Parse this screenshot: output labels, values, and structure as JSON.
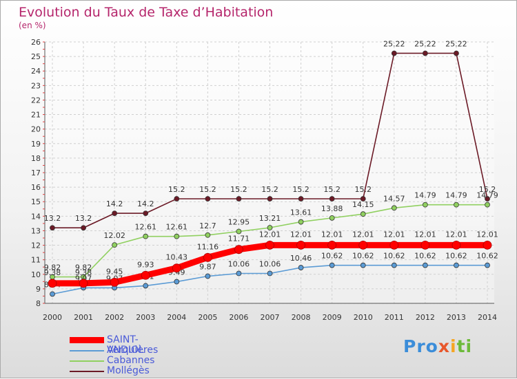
{
  "title": "Evolution du Taux de Taxe d’Habitation",
  "unit_label": "(en %)",
  "logo": {
    "letters": [
      "P",
      "r",
      "o",
      "x",
      "i",
      "t",
      "i"
    ],
    "colors": [
      "#3b8dd9",
      "#3b8dd9",
      "#3b8dd9",
      "#e8572b",
      "#f5a623",
      "#6cba3a",
      "#6cba3a"
    ]
  },
  "chart_data": {
    "type": "line",
    "x": [
      2000,
      2001,
      2002,
      2003,
      2004,
      2005,
      2006,
      2007,
      2008,
      2009,
      2010,
      2011,
      2012,
      2013,
      2014
    ],
    "ylim": [
      8,
      26
    ],
    "yticks": [
      8,
      9,
      10,
      11,
      12,
      13,
      14,
      15,
      16,
      17,
      18,
      19,
      20,
      21,
      22,
      23,
      24,
      25,
      26
    ],
    "grid": true,
    "legend_position": "bottom-left",
    "series": [
      {
        "name": "Mollégès",
        "color": "#6b1a26",
        "values": [
          13.2,
          13.2,
          14.2,
          14.2,
          15.2,
          15.2,
          15.2,
          15.2,
          15.2,
          15.2,
          15.2,
          25.22,
          25.22,
          25.22,
          15.2
        ],
        "labels": [
          "13.2",
          "13.2",
          "14.2",
          "14.2",
          "15.2",
          "15.2",
          "15.2",
          "15.2",
          "15.2",
          "15.2",
          "15.2",
          "25.22",
          "25.22",
          "25.22",
          "15.2"
        ]
      },
      {
        "name": "Cabannes",
        "color": "#90d060",
        "values": [
          9.82,
          9.82,
          12.02,
          12.61,
          12.61,
          12.7,
          12.95,
          13.21,
          13.61,
          13.88,
          14.15,
          14.57,
          14.79,
          14.79,
          14.79
        ],
        "labels": [
          "9.82",
          "9.82",
          "12.02",
          "12.61",
          "12.61",
          "12.7",
          "12.95",
          "13.21",
          "13.61",
          "13.88",
          "14.15",
          "14.57",
          "14.79",
          "14.79",
          "14.79"
        ]
      },
      {
        "name": "Verquières",
        "color": "#5b9bd5",
        "values": [
          8.64,
          9.07,
          9.07,
          9.21,
          9.49,
          9.87,
          10.06,
          10.06,
          10.46,
          10.62,
          10.62,
          10.62,
          10.62,
          10.62,
          10.62
        ],
        "labels": [
          "8.64",
          "9.07",
          "9.07",
          "9.21",
          "9.49",
          "9.87",
          "10.06",
          "10.06",
          "10.46",
          "10.62",
          "10.62",
          "10.62",
          "10.62",
          "10.62",
          "10.62"
        ]
      },
      {
        "name": "SAINT-ANDIOL",
        "color": "#ff0000",
        "values": [
          9.38,
          9.38,
          9.45,
          9.93,
          10.43,
          11.16,
          11.71,
          12.01,
          12.01,
          12.01,
          12.01,
          12.01,
          12.01,
          12.01,
          12.01
        ],
        "labels": [
          "9.38",
          "9.38",
          "9.45",
          "9.93",
          "10.43",
          "11.16",
          "11.71",
          "12.01",
          "12.01",
          "12.01",
          "12.01",
          "12.01",
          "12.01",
          "12.01",
          "12.01"
        ]
      }
    ],
    "legend": [
      "SAINT-ANDIOL",
      "Verquières",
      "Cabannes",
      "Mollégès"
    ]
  }
}
